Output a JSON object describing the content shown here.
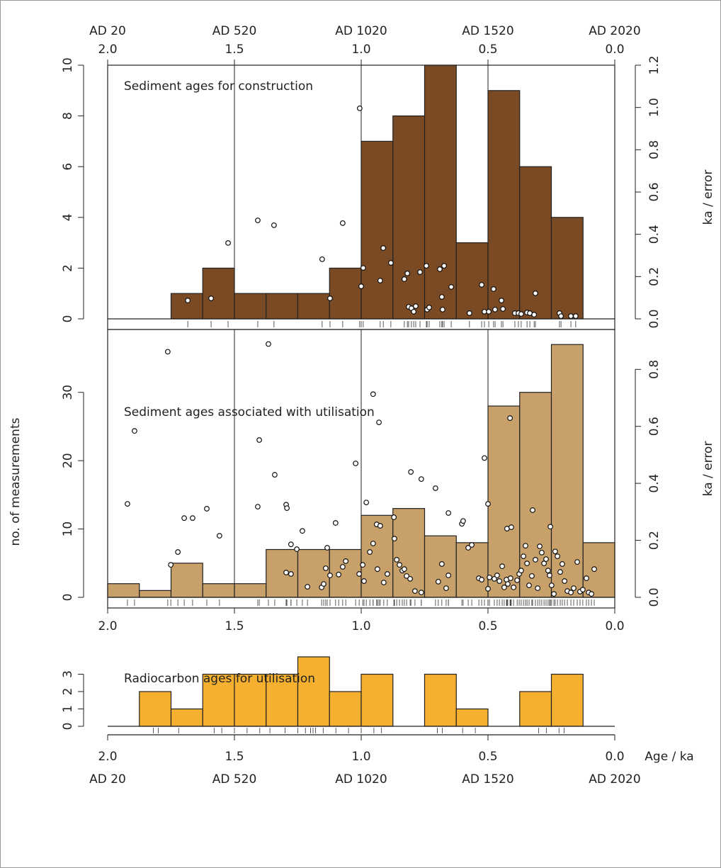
{
  "chart_data": [
    {
      "type": "histogram",
      "annotation": "Sediment ages for construction",
      "color": "#7a4a24",
      "grid": true,
      "bins": [
        2,
        1.875,
        1.75,
        1.625,
        1.5,
        1.375,
        1.25,
        1.125,
        1,
        0.875,
        0.75,
        0.625,
        0.5,
        0.375,
        0.25,
        0.125,
        0
      ],
      "counts": [
        0,
        0,
        1,
        2,
        1,
        1,
        1,
        2,
        7,
        8,
        10,
        3,
        9,
        6,
        4,
        0
      ],
      "xlim": [
        2,
        0
      ],
      "xticks": [
        {
          "value": 2,
          "label": "2.0"
        },
        {
          "value": 1.5,
          "label": "1.5"
        },
        {
          "value": 1,
          "label": "1.0"
        },
        {
          "value": 0.5,
          "label": "0.5"
        },
        {
          "value": 0,
          "label": "0.0"
        }
      ],
      "secondary_xtick_labels": [
        "AD 20",
        "AD 520",
        "AD 1020",
        "AD 1520",
        "AD 2020"
      ],
      "ylim": [
        0,
        10
      ],
      "yticks": [
        0,
        2,
        4,
        6,
        8,
        10
      ],
      "y2label": "ka / error",
      "y2lim": [
        0,
        1.2
      ],
      "y2ticks": [
        {
          "value": 0,
          "label": "0.0"
        },
        {
          "value": 0.2,
          "label": "0.2"
        },
        {
          "value": 0.4,
          "label": "0.4"
        },
        {
          "value": 0.6,
          "label": "0.6"
        },
        {
          "value": 0.8,
          "label": "0.8"
        },
        {
          "value": 1,
          "label": "1.0"
        },
        {
          "value": 1.2,
          "label": "1.2"
        }
      ],
      "points": {
        "axis": "y2",
        "x": [
          1.684,
          1.592,
          1.525,
          1.408,
          1.344,
          1.154,
          1.123,
          1.073,
          1.006,
          1.0,
          0.992,
          0.925,
          0.913,
          0.883,
          0.83,
          0.818,
          0.813,
          0.802,
          0.793,
          0.785,
          0.768,
          0.743,
          0.74,
          0.732,
          0.69,
          0.682,
          0.679,
          0.673,
          0.645,
          0.573,
          0.525,
          0.514,
          0.497,
          0.478,
          0.472,
          0.447,
          0.441,
          0.394,
          0.38,
          0.369,
          0.346,
          0.335,
          0.318,
          0.313,
          0.218,
          0.212,
          0.173,
          0.154
        ],
        "y": [
          0.087,
          0.097,
          0.359,
          0.466,
          0.443,
          0.282,
          0.097,
          0.453,
          0.996,
          0.154,
          0.241,
          0.181,
          0.335,
          0.265,
          0.188,
          0.215,
          0.057,
          0.05,
          0.034,
          0.06,
          0.221,
          0.251,
          0.044,
          0.054,
          0.235,
          0.104,
          0.044,
          0.251,
          0.151,
          0.027,
          0.161,
          0.034,
          0.034,
          0.141,
          0.044,
          0.087,
          0.047,
          0.027,
          0.027,
          0.023,
          0.03,
          0.027,
          0.02,
          0.121,
          0.027,
          0.013,
          0.013,
          0.013
        ]
      }
    },
    {
      "type": "histogram",
      "annotation": "Sediment ages associated with utilisation",
      "color": "#c8a06a",
      "grid": true,
      "bins": [
        2,
        1.875,
        1.75,
        1.625,
        1.5,
        1.375,
        1.25,
        1.125,
        1,
        0.875,
        0.75,
        0.625,
        0.5,
        0.375,
        0.25,
        0.125,
        0
      ],
      "counts": [
        2,
        1,
        5,
        2,
        2,
        7,
        7,
        7,
        12,
        13,
        9,
        8,
        28,
        30,
        37,
        8
      ],
      "xlim": [
        2,
        0
      ],
      "xticks": [
        {
          "value": 2,
          "label": "2.0"
        },
        {
          "value": 1.5,
          "label": "1.5"
        },
        {
          "value": 1,
          "label": "1.0"
        },
        {
          "value": 0.5,
          "label": "0.5"
        },
        {
          "value": 0,
          "label": "0.0"
        }
      ],
      "ylabel": "no. of measurements",
      "ylim": [
        0,
        39.2
      ],
      "yticks": [
        0,
        10,
        20,
        30
      ],
      "y2label": "ka / error",
      "y2lim": [
        0,
        0.94
      ],
      "y2ticks": [
        {
          "value": 0,
          "label": "0.0"
        },
        {
          "value": 0.2,
          "label": "0.2"
        },
        {
          "value": 0.4,
          "label": "0.4"
        },
        {
          "value": 0.6,
          "label": "0.6"
        },
        {
          "value": 0.8,
          "label": "0.8"
        }
      ],
      "points": {
        "axis": "y2",
        "x": [
          1.763,
          1.366,
          1.894,
          1.922,
          0.953,
          0.93,
          0.413,
          1.402,
          1.022,
          1.341,
          0.514,
          0.804,
          0.763,
          0.707,
          1.698,
          1.665,
          1.609,
          1.559,
          1.408,
          1.296,
          1.293,
          1.101,
          0.98,
          0.939,
          0.925,
          0.871,
          0.656,
          0.603,
          0.598,
          0.5,
          0.425,
          0.408,
          0.324,
          0.254,
          1.723,
          1.751,
          1.277,
          1.232,
          1.134,
          1.254,
          1.296,
          1.277,
          1.212,
          1.156,
          1.148,
          1.14,
          1.123,
          1.089,
          1.073,
          1.061,
          1.008,
          0.994,
          0.989,
          0.966,
          0.953,
          0.936,
          0.911,
          0.897,
          0.869,
          0.86,
          0.849,
          0.838,
          0.83,
          0.821,
          0.807,
          0.788,
          0.763,
          0.696,
          0.682,
          0.665,
          0.656,
          0.578,
          0.564,
          0.536,
          0.525,
          0.5,
          0.494,
          0.475,
          0.464,
          0.455,
          0.444,
          0.436,
          0.427,
          0.422,
          0.411,
          0.399,
          0.385,
          0.377,
          0.369,
          0.36,
          0.352,
          0.346,
          0.338,
          0.327,
          0.313,
          0.304,
          0.296,
          0.288,
          0.279,
          0.271,
          0.263,
          0.257,
          0.249,
          0.24,
          0.235,
          0.226,
          0.215,
          0.207,
          0.198,
          0.187,
          0.173,
          0.162,
          0.148,
          0.137,
          0.126,
          0.112,
          0.103,
          0.092,
          0.081
        ],
        "y": [
          0.862,
          0.889,
          0.584,
          0.328,
          0.713,
          0.614,
          0.629,
          0.552,
          0.47,
          0.43,
          0.489,
          0.44,
          0.415,
          0.383,
          0.278,
          0.278,
          0.311,
          0.216,
          0.318,
          0.325,
          0.313,
          0.261,
          0.333,
          0.256,
          0.251,
          0.281,
          0.296,
          0.258,
          0.268,
          0.328,
          0.241,
          0.246,
          0.306,
          0.248,
          0.159,
          0.114,
          0.186,
          0.233,
          0.174,
          0.169,
          0.087,
          0.082,
          0.037,
          0.035,
          0.047,
          0.102,
          0.077,
          0.08,
          0.107,
          0.127,
          0.082,
          0.114,
          0.057,
          0.159,
          0.189,
          0.099,
          0.052,
          0.082,
          0.206,
          0.132,
          0.114,
          0.094,
          0.099,
          0.075,
          0.065,
          0.022,
          0.017,
          0.055,
          0.117,
          0.032,
          0.077,
          0.174,
          0.184,
          0.067,
          0.062,
          0.03,
          0.07,
          0.065,
          0.077,
          0.057,
          0.109,
          0.035,
          0.062,
          0.047,
          0.067,
          0.035,
          0.06,
          0.082,
          0.094,
          0.144,
          0.181,
          0.119,
          0.042,
          0.075,
          0.132,
          0.032,
          0.179,
          0.157,
          0.119,
          0.134,
          0.094,
          0.077,
          0.042,
          0.012,
          0.161,
          0.144,
          0.089,
          0.117,
          0.057,
          0.022,
          0.017,
          0.032,
          0.124,
          0.02,
          0.027,
          0.067,
          0.017,
          0.012,
          0.099
        ]
      }
    },
    {
      "type": "histogram",
      "annotation": "Radiocarbon ages for utilisation",
      "color": "#f5b030",
      "grid": false,
      "bins": [
        2,
        1.875,
        1.75,
        1.625,
        1.5,
        1.375,
        1.25,
        1.125,
        1,
        0.875,
        0.75,
        0.625,
        0.5,
        0.375,
        0.25,
        0.125,
        0
      ],
      "counts": [
        0,
        2,
        1,
        3,
        3,
        3,
        4,
        2,
        3,
        0,
        3,
        1,
        0,
        2,
        3,
        0
      ],
      "rug": [
        1.82,
        1.8,
        1.72,
        1.58,
        1.55,
        1.5,
        1.45,
        1.4,
        1.36,
        1.3,
        1.25,
        1.22,
        1.2,
        1.19,
        1.18,
        1.15,
        1.1,
        1.05,
        1.0,
        0.95,
        0.92,
        0.7,
        0.68,
        0.6,
        0.55,
        0.3,
        0.27,
        0.22,
        0.2
      ],
      "xlim": [
        2,
        0
      ],
      "xlabel": "Age / ka",
      "xticks": [
        {
          "value": 2,
          "label": "2.0"
        },
        {
          "value": 1.5,
          "label": "1.5"
        },
        {
          "value": 1,
          "label": "1.0"
        },
        {
          "value": 0.5,
          "label": "0.5"
        },
        {
          "value": 0,
          "label": "0.0"
        }
      ],
      "secondary_xtick_labels": [
        "AD 20",
        "AD 520",
        "AD 1020",
        "AD 1520",
        "AD 2020"
      ],
      "ylim": [
        0,
        4
      ],
      "yticks": [
        0,
        1,
        2,
        3
      ]
    }
  ]
}
